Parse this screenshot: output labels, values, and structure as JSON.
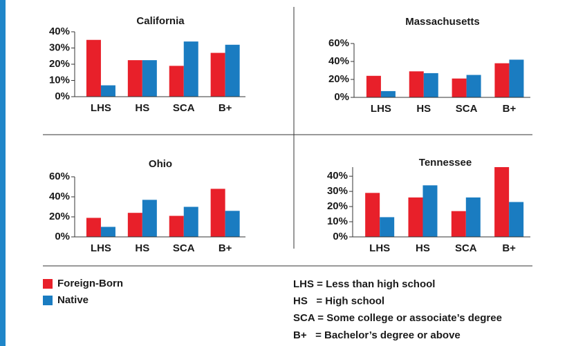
{
  "chart_data": [
    {
      "type": "bar",
      "title": "California",
      "categories": [
        "LHS",
        "HS",
        "SCA",
        "B+"
      ],
      "series": [
        {
          "name": "Foreign-Born",
          "color": "#e8202a",
          "values": [
            35,
            22.5,
            19,
            27
          ]
        },
        {
          "name": "Native",
          "color": "#1a7cc1",
          "values": [
            7,
            22.5,
            34,
            32
          ]
        }
      ],
      "ylim": [
        0,
        40
      ],
      "yticks": [
        {
          "value": 0,
          "label": "0%"
        },
        {
          "value": 10,
          "label": "10%"
        },
        {
          "value": 20,
          "label": "20%"
        },
        {
          "value": 30,
          "label": "30%"
        },
        {
          "value": 40,
          "label": "40%"
        }
      ]
    },
    {
      "type": "bar",
      "title": "Massachusetts",
      "categories": [
        "LHS",
        "HS",
        "SCA",
        "B+"
      ],
      "series": [
        {
          "name": "Foreign-Born",
          "color": "#e8202a",
          "values": [
            24,
            29,
            21,
            38
          ]
        },
        {
          "name": "Native",
          "color": "#1a7cc1",
          "values": [
            7,
            27,
            25,
            42
          ]
        }
      ],
      "ylim": [
        0,
        60
      ],
      "yticks": [
        {
          "value": 0,
          "label": "0%"
        },
        {
          "value": 20,
          "label": "20%"
        },
        {
          "value": 40,
          "label": "40%"
        },
        {
          "value": 60,
          "label": "60%"
        }
      ]
    },
    {
      "type": "bar",
      "title": "Ohio",
      "categories": [
        "LHS",
        "HS",
        "SCA",
        "B+"
      ],
      "series": [
        {
          "name": "Foreign-Born",
          "color": "#e8202a",
          "values": [
            19,
            24,
            21,
            48
          ]
        },
        {
          "name": "Native",
          "color": "#1a7cc1",
          "values": [
            10,
            37,
            30,
            26
          ]
        }
      ],
      "ylim": [
        0,
        60
      ],
      "yticks": [
        {
          "value": 0,
          "label": "0%"
        },
        {
          "value": 20,
          "label": "20%"
        },
        {
          "value": 40,
          "label": "40%"
        },
        {
          "value": 60,
          "label": "60%"
        }
      ]
    },
    {
      "type": "bar",
      "title": "Tennessee",
      "categories": [
        "LHS",
        "HS",
        "SCA",
        "B+"
      ],
      "series": [
        {
          "name": "Foreign-Born",
          "color": "#e8202a",
          "values": [
            29,
            26,
            17,
            46
          ]
        },
        {
          "name": "Native",
          "color": "#1a7cc1",
          "values": [
            13,
            34,
            26,
            23
          ]
        }
      ],
      "ylim": [
        0,
        46
      ],
      "yticks": [
        {
          "value": 0,
          "label": "0%"
        },
        {
          "value": 10,
          "label": "10%"
        },
        {
          "value": 20,
          "label": "20%"
        },
        {
          "value": 30,
          "label": "30%"
        },
        {
          "value": 40,
          "label": "40%"
        }
      ]
    }
  ],
  "key": [
    "LHS = Less than high school",
    "HS   = High school",
    "SCA = Some college or associate’s degree",
    "B+   = Bachelor’s degree or above"
  ]
}
